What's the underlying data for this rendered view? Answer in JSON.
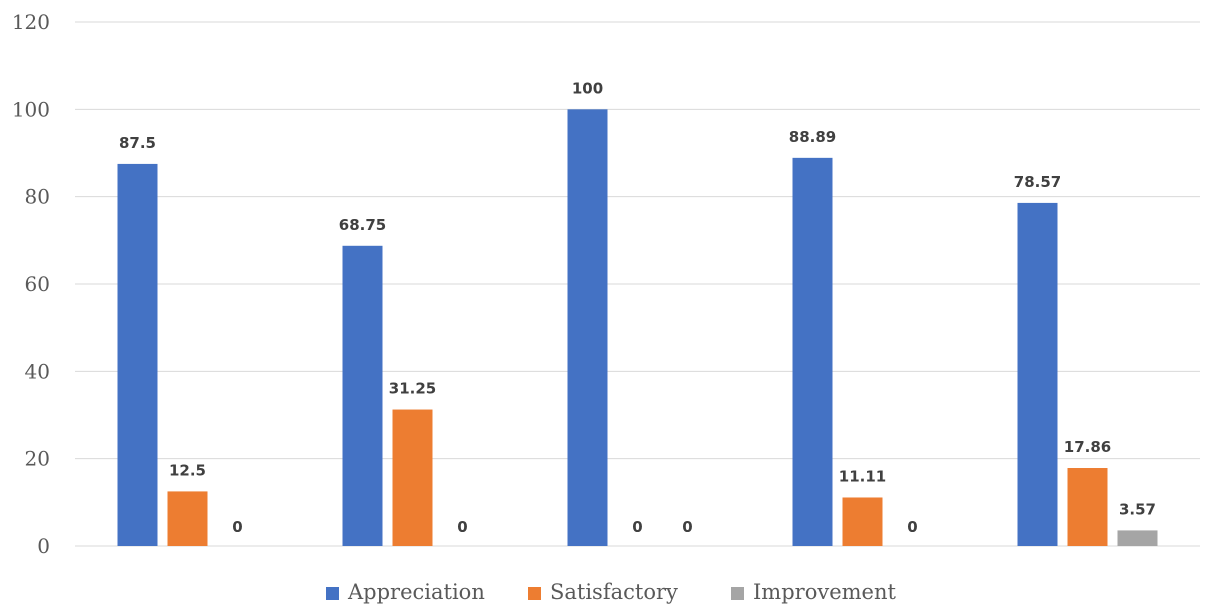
{
  "chart_data": {
    "type": "bar",
    "title": "",
    "xlabel": "",
    "ylabel": "",
    "categories": [
      "",
      "",
      "",
      "",
      ""
    ],
    "ylim": [
      0,
      120
    ],
    "yticks": [
      0,
      20,
      40,
      60,
      80,
      100,
      120
    ],
    "grid": true,
    "legend_position": "bottom",
    "series": [
      {
        "name": "Appreciation",
        "color": "#4472C4",
        "values": [
          87.5,
          68.75,
          100,
          88.89,
          78.57
        ],
        "labels": [
          "87.5",
          "68.75",
          "100",
          "88.89",
          "78.57"
        ]
      },
      {
        "name": "Satisfactory",
        "color": "#ED7D31",
        "values": [
          12.5,
          31.25,
          0,
          11.11,
          17.86
        ],
        "labels": [
          "12.5",
          "31.25",
          "0",
          "11.11",
          "17.86"
        ]
      },
      {
        "name": "Improvement",
        "color": "#A5A5A5",
        "values": [
          0,
          0,
          0,
          0,
          3.57
        ],
        "labels": [
          "0",
          "0",
          "0",
          "0",
          "3.57"
        ]
      }
    ]
  }
}
